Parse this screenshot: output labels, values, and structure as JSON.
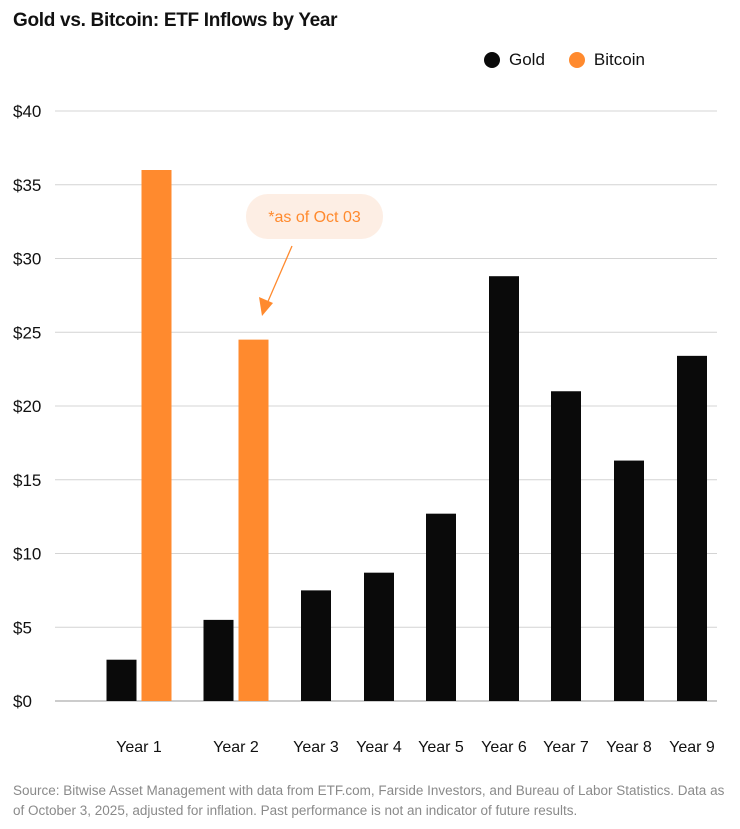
{
  "chart_data": {
    "type": "bar",
    "title": "Gold vs. Bitcoin: ETF Inflows by Year",
    "categories": [
      "Year 1",
      "Year 2",
      "Year 3",
      "Year 4",
      "Year 5",
      "Year 6",
      "Year 7",
      "Year 8",
      "Year 9"
    ],
    "series": [
      {
        "name": "Gold",
        "color": "#0a0a0a",
        "values": [
          2.8,
          5.5,
          7.5,
          8.7,
          12.7,
          28.8,
          21.0,
          16.3,
          23.4
        ]
      },
      {
        "name": "Bitcoin",
        "color": "#ff8a2e",
        "values": [
          36.0,
          24.5,
          null,
          null,
          null,
          null,
          null,
          null,
          null
        ]
      }
    ],
    "ylim": [
      0,
      40
    ],
    "yticks": [
      0,
      5,
      10,
      15,
      20,
      25,
      30,
      35,
      40
    ],
    "ytick_labels": [
      "$0",
      "$5",
      "$10",
      "$15",
      "$20",
      "$25",
      "$30",
      "$35",
      "$40"
    ],
    "grid": true,
    "legend": "top-right",
    "annotation": {
      "text": "*as of Oct 03",
      "target": "Bitcoin Year 2",
      "bg": "#fdeee4",
      "color": "#ff8a2e"
    }
  },
  "source": "Source: Bitwise Asset Management with data from ETF.com, Farside Investors, and Bureau of Labor Statistics. Data as of October 3, 2025, adjusted for inflation. Past performance is not an indicator of future results."
}
